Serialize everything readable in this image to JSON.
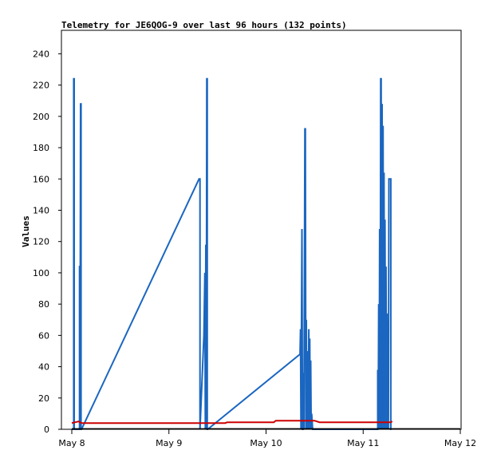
{
  "chart_data": {
    "type": "line",
    "title": "Telemetry for JE6QOG-9 over last 96 hours (132 points)",
    "xlabel": "",
    "ylabel": "Values",
    "x_ticks": [
      "May 8",
      "May 9",
      "May 10",
      "May 11",
      "May 12"
    ],
    "y_ticks": [
      0,
      20,
      40,
      60,
      80,
      100,
      120,
      140,
      160,
      180,
      200,
      220,
      240
    ],
    "xlim": [
      0,
      4
    ],
    "ylim": [
      0,
      255
    ],
    "grid": false,
    "legend": "none",
    "series": [
      {
        "color": "#1a66c0",
        "points": [
          [
            0.0,
            0
          ],
          [
            0.0,
            0
          ],
          [
            0.02,
            0
          ],
          [
            0.02,
            224
          ],
          [
            0.025,
            224
          ],
          [
            0.025,
            0
          ],
          [
            0.08,
            0
          ],
          [
            0.08,
            104
          ],
          [
            0.085,
            104
          ],
          [
            0.085,
            0
          ],
          [
            0.09,
            208
          ],
          [
            0.095,
            208
          ],
          [
            0.095,
            0
          ],
          [
            0.1,
            0
          ],
          [
            1.31,
            160
          ],
          [
            1.32,
            160
          ],
          [
            1.32,
            0
          ],
          [
            1.36,
            60
          ],
          [
            1.37,
            100
          ],
          [
            1.375,
            0
          ],
          [
            1.38,
            118
          ],
          [
            1.385,
            0
          ],
          [
            1.39,
            224
          ],
          [
            1.395,
            224
          ],
          [
            1.395,
            0
          ],
          [
            1.4,
            0
          ],
          [
            2.35,
            48
          ],
          [
            2.355,
            64
          ],
          [
            2.36,
            0
          ],
          [
            2.37,
            128
          ],
          [
            2.375,
            0
          ],
          [
            2.38,
            0
          ],
          [
            2.385,
            36
          ],
          [
            2.39,
            0
          ],
          [
            2.4,
            192
          ],
          [
            2.405,
            192
          ],
          [
            2.41,
            0
          ],
          [
            2.415,
            70
          ],
          [
            2.42,
            0
          ],
          [
            2.43,
            50
          ],
          [
            2.435,
            0
          ],
          [
            2.44,
            64
          ],
          [
            2.445,
            0
          ],
          [
            2.45,
            58
          ],
          [
            2.455,
            0
          ],
          [
            2.46,
            44
          ],
          [
            2.465,
            0
          ],
          [
            2.47,
            10
          ],
          [
            2.48,
            0
          ],
          [
            3.15,
            0
          ],
          [
            3.15,
            38
          ],
          [
            3.155,
            0
          ],
          [
            3.16,
            80
          ],
          [
            3.165,
            0
          ],
          [
            3.17,
            128
          ],
          [
            3.175,
            0
          ],
          [
            3.18,
            224
          ],
          [
            3.185,
            224
          ],
          [
            3.19,
            0
          ],
          [
            3.195,
            208
          ],
          [
            3.2,
            0
          ],
          [
            3.205,
            194
          ],
          [
            3.21,
            0
          ],
          [
            3.215,
            164
          ],
          [
            3.22,
            0
          ],
          [
            3.225,
            134
          ],
          [
            3.23,
            0
          ],
          [
            3.235,
            104
          ],
          [
            3.24,
            0
          ],
          [
            3.245,
            74
          ],
          [
            3.25,
            0
          ],
          [
            3.255,
            48
          ],
          [
            3.26,
            0
          ],
          [
            3.265,
            160
          ],
          [
            3.285,
            160
          ],
          [
            3.285,
            0
          ],
          [
            3.29,
            0
          ]
        ]
      },
      {
        "color": "#cc0000",
        "points": [
          [
            0.0,
            4
          ],
          [
            0.07,
            5
          ],
          [
            0.1,
            4
          ],
          [
            1.0,
            4
          ],
          [
            1.58,
            4
          ],
          [
            1.6,
            4.5
          ],
          [
            2.08,
            4.5
          ],
          [
            2.1,
            5.5
          ],
          [
            2.5,
            5.5
          ],
          [
            2.55,
            4.5
          ],
          [
            3.28,
            4.5
          ],
          [
            3.3,
            5
          ]
        ]
      },
      {
        "color": "#000000",
        "points": [
          [
            0.0,
            0.3
          ],
          [
            4.0,
            0.3
          ]
        ]
      }
    ]
  }
}
